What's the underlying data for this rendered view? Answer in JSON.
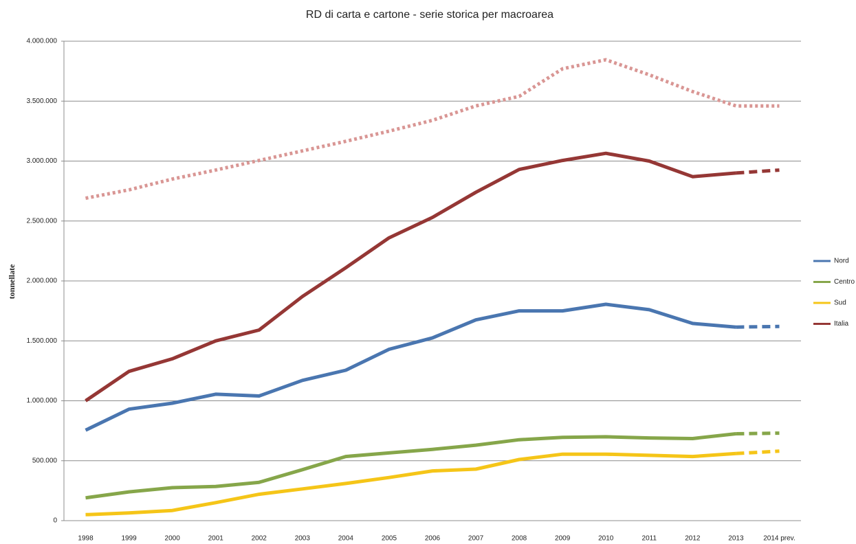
{
  "chart_data": {
    "type": "line",
    "title": "RD di carta e cartone - serie storica per macroarea",
    "y_label": "tonnellate",
    "categories": [
      "1998",
      "1999",
      "2000",
      "2001",
      "2002",
      "2003",
      "2004",
      "2005",
      "2006",
      "2007",
      "2008",
      "2009",
      "2010",
      "2011",
      "2012",
      "2013",
      "2014 prev."
    ],
    "series": [
      {
        "name": "Nord",
        "color": "#4a76b0",
        "dash_last_segment": true,
        "values": [
          755000,
          930000,
          980000,
          1055000,
          1040000,
          1170000,
          1255000,
          1430000,
          1525000,
          1675000,
          1750000,
          1750000,
          1805000,
          1760000,
          1645000,
          1615000,
          1620000
        ]
      },
      {
        "name": "Centro",
        "color": "#86a64a",
        "dash_last_segment": true,
        "values": [
          190000,
          240000,
          275000,
          285000,
          320000,
          425000,
          535000,
          565000,
          595000,
          630000,
          675000,
          695000,
          700000,
          690000,
          685000,
          725000,
          730000
        ]
      },
      {
        "name": "Sud",
        "color": "#f5c518",
        "dash_last_segment": true,
        "values": [
          50000,
          65000,
          85000,
          150000,
          220000,
          265000,
          310000,
          360000,
          415000,
          430000,
          510000,
          555000,
          555000,
          545000,
          535000,
          560000,
          580000
        ]
      },
      {
        "name": "Italia",
        "color": "#953735",
        "dash_last_segment": true,
        "values": [
          1000000,
          1245000,
          1350000,
          1500000,
          1590000,
          1870000,
          2110000,
          2360000,
          2530000,
          2740000,
          2930000,
          3005000,
          3065000,
          3000000,
          2870000,
          2900000,
          2925000
        ]
      },
      {
        "color": "#d99694",
        "style": "dotted",
        "values": [
          2690000,
          2760000,
          2850000,
          2925000,
          3005000,
          3085000,
          3165000,
          3250000,
          3340000,
          3460000,
          3540000,
          3770000,
          3845000,
          3720000,
          3580000,
          3460000,
          3460000
        ]
      }
    ],
    "ylim": [
      0,
      4000000
    ],
    "yticks": [
      0,
      {
        "value": 500000,
        "label": "500.000"
      },
      {
        "value": 1000000,
        "label": "1.000.000"
      },
      {
        "value": 1500000,
        "label": "1.500.000"
      },
      {
        "value": 2000000,
        "label": "2.000.000"
      },
      {
        "value": 2500000,
        "label": "2.500.000"
      },
      {
        "value": 3000000,
        "label": "3.000.000"
      },
      {
        "value": 3500000,
        "label": "3.500.000"
      },
      {
        "value": 4000000,
        "label": "4.000.000"
      }
    ],
    "grid": true,
    "legend": "right"
  }
}
